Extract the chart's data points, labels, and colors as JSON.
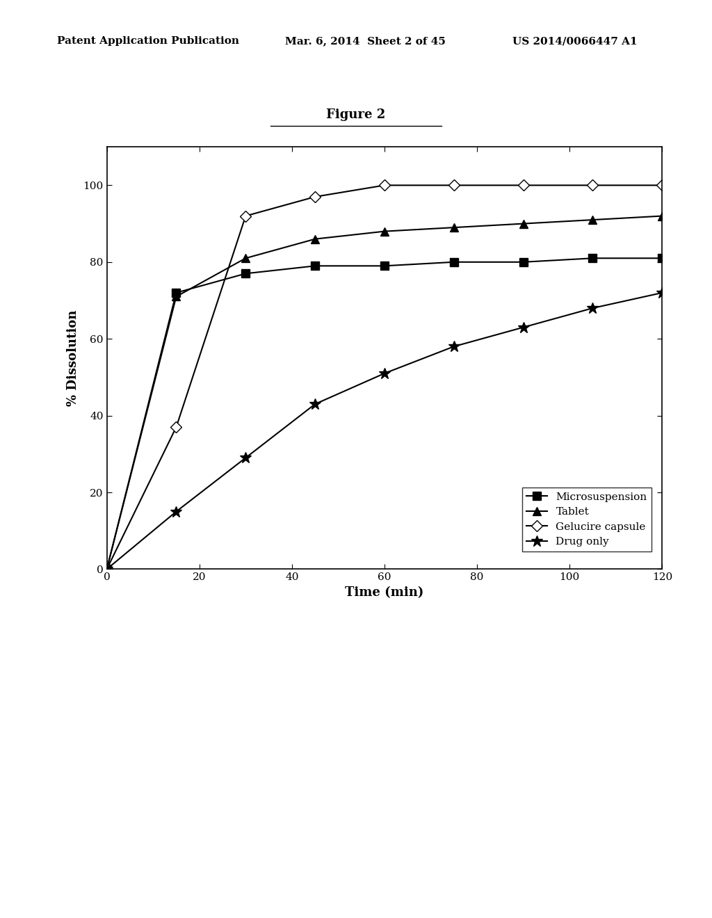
{
  "title": "Figure 2",
  "xlabel": "Time (min)",
  "ylabel": "% Dissolution",
  "header_left": "Patent Application Publication",
  "header_mid": "Mar. 6, 2014  Sheet 2 of 45",
  "header_right": "US 2014/0066447 A1",
  "xlim": [
    0,
    120
  ],
  "ylim": [
    0,
    110
  ],
  "xticks": [
    0,
    20,
    40,
    60,
    80,
    100,
    120
  ],
  "yticks": [
    0,
    20,
    40,
    60,
    80,
    100
  ],
  "series": {
    "Microsuspension": {
      "x": [
        0,
        15,
        30,
        45,
        60,
        75,
        90,
        105,
        120
      ],
      "y": [
        0,
        72,
        77,
        79,
        79,
        80,
        80,
        81,
        81
      ],
      "marker": "s",
      "color": "black",
      "linestyle": "-",
      "markersize": 8,
      "markerfacecolor": "black"
    },
    "Tablet": {
      "x": [
        0,
        15,
        30,
        45,
        60,
        75,
        90,
        105,
        120
      ],
      "y": [
        0,
        71,
        81,
        86,
        88,
        89,
        90,
        91,
        92
      ],
      "marker": "^",
      "color": "black",
      "linestyle": "-",
      "markersize": 9,
      "markerfacecolor": "black"
    },
    "Gelucire capsule": {
      "x": [
        0,
        15,
        30,
        45,
        60,
        75,
        90,
        105,
        120
      ],
      "y": [
        0,
        37,
        92,
        97,
        100,
        100,
        100,
        100,
        100
      ],
      "marker": "D",
      "color": "black",
      "linestyle": "-",
      "markersize": 8,
      "markerfacecolor": "white"
    },
    "Drug only": {
      "x": [
        0,
        15,
        30,
        45,
        60,
        75,
        90,
        105,
        120
      ],
      "y": [
        0,
        15,
        29,
        43,
        51,
        58,
        63,
        68,
        72
      ],
      "marker": "*",
      "color": "black",
      "linestyle": "-",
      "markersize": 12,
      "markerfacecolor": "black"
    }
  },
  "legend_order": [
    "Microsuspension",
    "Tablet",
    "Gelucire capsule",
    "Drug only"
  ],
  "background_color": "#ffffff",
  "plot_bg_color": "#ffffff"
}
